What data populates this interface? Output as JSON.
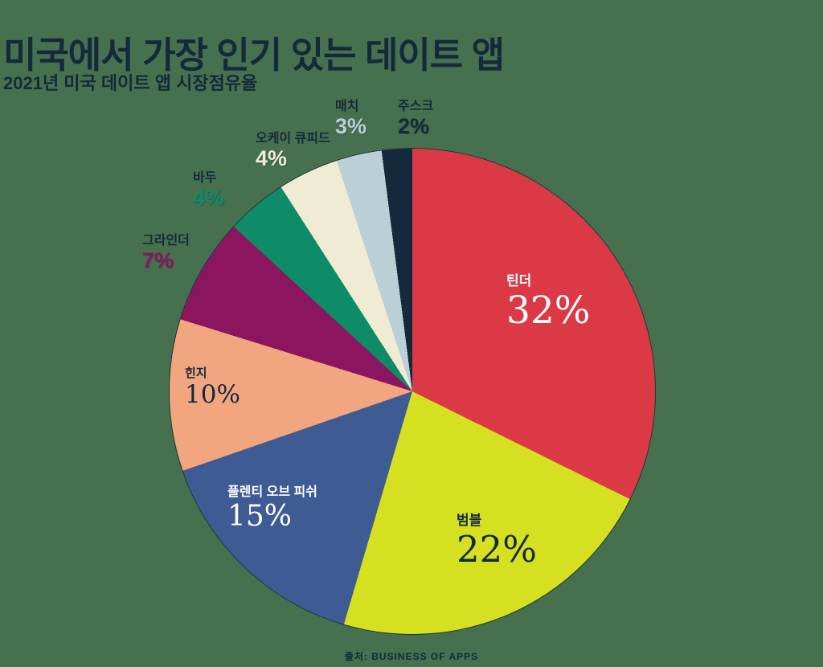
{
  "title": "미국에서 가장 인기 있는 데이트 앱",
  "subtitle": "2021년 미국 데이트 앱 시장점유율",
  "source": "출처: BUSINESS OF APPS",
  "colors": {
    "background": "#47704f",
    "heading_text": "#14293b",
    "pie_outline": "#132839"
  },
  "chart_data": {
    "type": "pie",
    "title": "미국에서 가장 인기 있는 데이트 앱",
    "subtitle": "2021년 미국 데이트 앱 시장점유율",
    "source": "출처: BUSINESS OF APPS",
    "unit": "%",
    "start_angle_deg": 0,
    "direction": "clockwise",
    "legend_position": "labels-on-chart",
    "slices": [
      {
        "label": "틴더",
        "value": 32,
        "pct": "32%",
        "color": "#da3945",
        "placement": "inside",
        "name_color": "#ffffff",
        "pct_color": "#ffffff"
      },
      {
        "label": "범블",
        "value": 22,
        "pct": "22%",
        "color": "#d5e021",
        "placement": "inside",
        "name_color": "#14293b",
        "pct_color": "#14293b"
      },
      {
        "label": "플렌티 오브 피쉬",
        "value": 15,
        "pct": "15%",
        "color": "#3e5b94",
        "placement": "inside",
        "name_color": "#ffffff",
        "pct_color": "#ffffff"
      },
      {
        "label": "힌지",
        "value": 10,
        "pct": "10%",
        "color": "#f2a67f",
        "placement": "inside",
        "name_color": "#14293b",
        "pct_color": "#14293b"
      },
      {
        "label": "그라인더",
        "value": 7,
        "pct": "7%",
        "color": "#8c1560",
        "placement": "outside",
        "name_color": "#14293b",
        "pct_color": "#8c1560"
      },
      {
        "label": "바두",
        "value": 4,
        "pct": "4%",
        "color": "#0e8c68",
        "placement": "outside",
        "name_color": "#14293b",
        "pct_color": "#0e8c68"
      },
      {
        "label": "오케이 큐피드",
        "value": 4,
        "pct": "4%",
        "color": "#f0ecd3",
        "placement": "outside",
        "name_color": "#14293b",
        "pct_color": "#f0ecd3"
      },
      {
        "label": "매치",
        "value": 3,
        "pct": "3%",
        "color": "#bacfd6",
        "placement": "outside",
        "name_color": "#14293b",
        "pct_color": "#bacfd6"
      },
      {
        "label": "주스크",
        "value": 2,
        "pct": "2%",
        "color": "#14293b",
        "placement": "outside",
        "name_color": "#14293b",
        "pct_color": "#14293b"
      }
    ]
  }
}
